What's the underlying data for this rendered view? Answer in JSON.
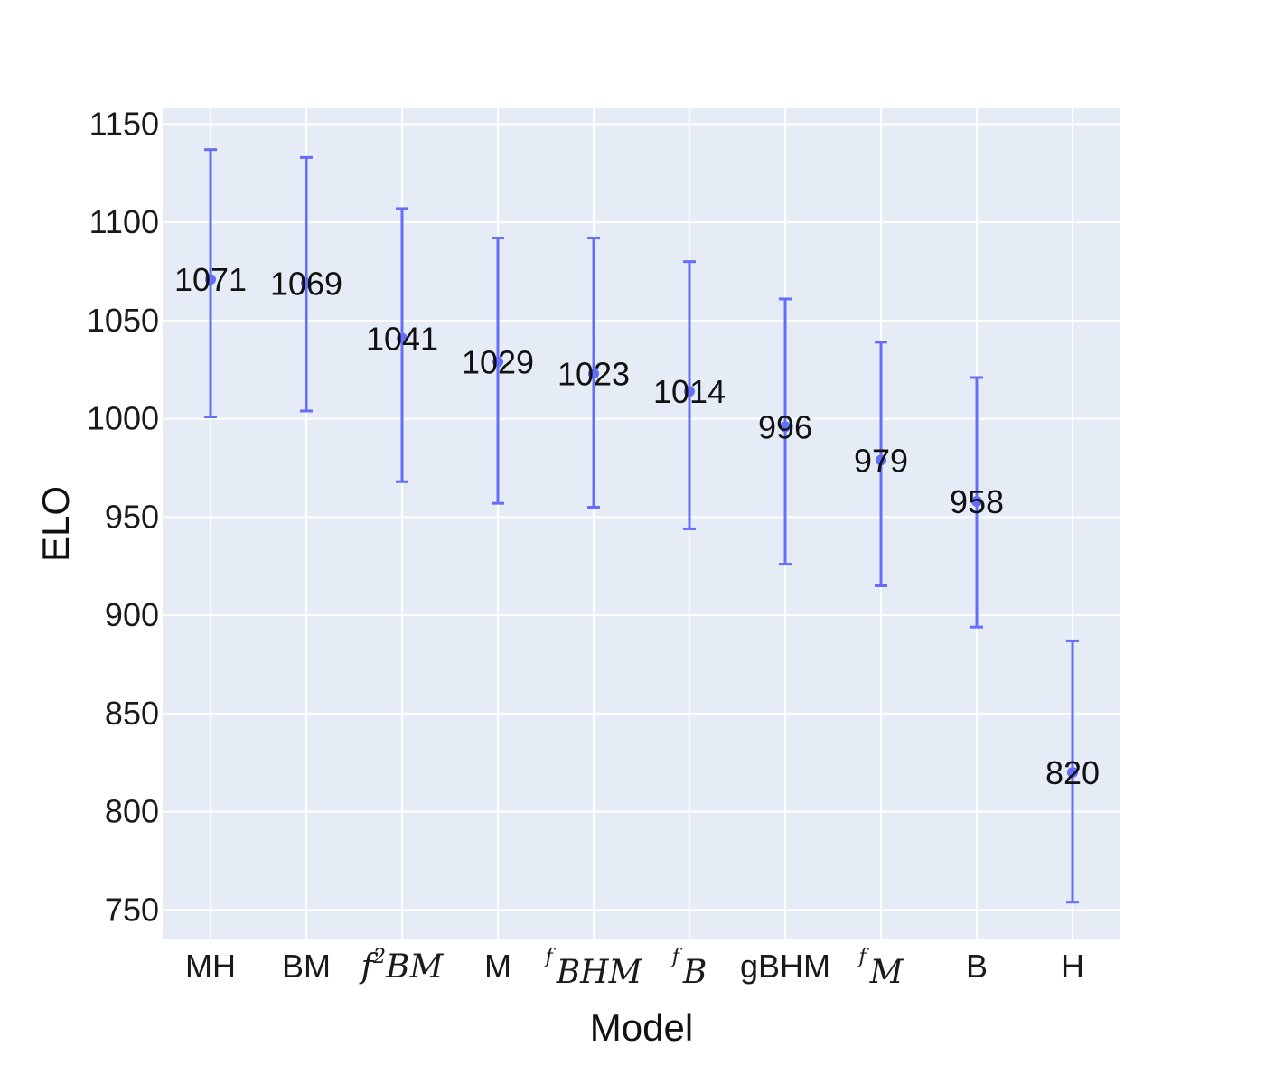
{
  "chart_data": {
    "type": "scatter",
    "title": "",
    "xlabel": "Model",
    "ylabel": "ELO",
    "ylim": [
      735,
      1158
    ],
    "yticks": [
      750,
      800,
      850,
      900,
      950,
      1000,
      1050,
      1100,
      1150
    ],
    "grid": true,
    "legend": "none",
    "colors": {
      "plot_background": "#e5ecf6",
      "grid": "#ffffff",
      "marker": "#636efa"
    },
    "categories": [
      {
        "label": "MH",
        "math": false
      },
      {
        "label": "BM",
        "math": false
      },
      {
        "label": "BM",
        "math": true,
        "sup": "2",
        "prefix": "f"
      },
      {
        "label": "M",
        "math": false
      },
      {
        "label": "BHM",
        "math": true,
        "sup": "f",
        "prefix": ""
      },
      {
        "label": "B",
        "math": true,
        "sup": "f",
        "prefix": ""
      },
      {
        "label": "gBHM",
        "math": false
      },
      {
        "label": "M",
        "math": true,
        "sup": "f",
        "prefix": ""
      },
      {
        "label": "B",
        "math": false
      },
      {
        "label": "H",
        "math": false
      }
    ],
    "series": [
      {
        "values": [
          1071,
          1069,
          1041,
          1029,
          1023,
          1014,
          996,
          979,
          958,
          820
        ],
        "error_upper": [
          1137,
          1133,
          1107,
          1092,
          1092,
          1080,
          1061,
          1039,
          1021,
          887
        ],
        "error_lower": [
          1001,
          1004,
          968,
          957,
          955,
          944,
          926,
          915,
          894,
          754
        ],
        "data_labels": [
          "1071",
          "1069",
          "1041",
          "1029",
          "1023",
          "1014",
          "996",
          "979",
          "958",
          "820"
        ]
      }
    ]
  }
}
